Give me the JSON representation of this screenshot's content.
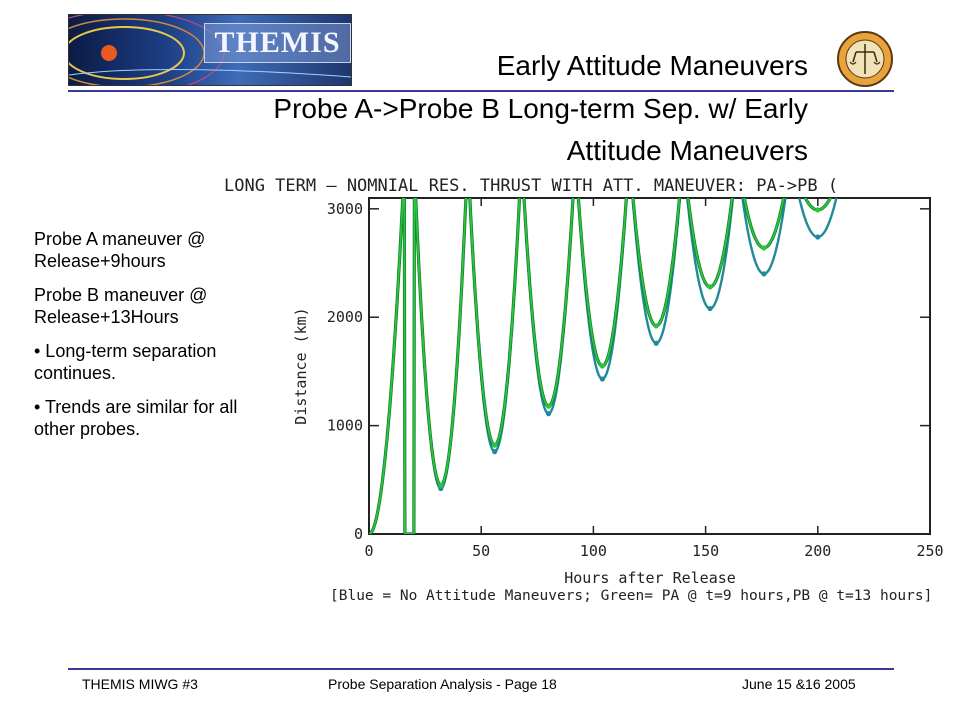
{
  "header": {
    "logo_text": "THEMIS",
    "seal_text": "THEMIS",
    "title_line1": "Early Attitude Maneuvers",
    "title_line2": "Probe A->Probe B Long-term Sep. w/ Early",
    "title_line3": "Attitude Maneuvers"
  },
  "notes": {
    "item1": "Probe A maneuver @ Release+9hours",
    "item2": "Probe B maneuver @ Release+13Hours",
    "item3": "• Long-term separation continues.",
    "item4": "• Trends are similar for all other probes."
  },
  "chart_data": {
    "type": "line",
    "title": "LONG TERM –  NOMNIAL RES. THRUST WITH ATT. MANEUVER: PA->PB (",
    "xlabel": "Hours after Release",
    "ylabel": "Distance (km)",
    "caption": "[Blue = No Attitude Maneuvers; Green= PA @ t=9 hours,PB @ t=13 hours]",
    "xlim": [
      0,
      250
    ],
    "ylim": [
      0,
      3100
    ],
    "xticks": [
      "0",
      "50",
      "100",
      "150",
      "200",
      "250"
    ],
    "yticks": [
      "0",
      "1000",
      "2000",
      "3000"
    ],
    "colors": {
      "blue": "#1f8a9a",
      "green": "#2cc43c",
      "green_dark": "#0c7a2a"
    },
    "series": [
      {
        "name": "Blue = No Attitude Maneuvers",
        "color": "#1f8a9a",
        "minima": [
          {
            "x": 32,
            "y": 420
          },
          {
            "x": 56,
            "y": 760
          },
          {
            "x": 80,
            "y": 1110
          },
          {
            "x": 104,
            "y": 1430
          },
          {
            "x": 128,
            "y": 1760
          },
          {
            "x": 152,
            "y": 2080
          },
          {
            "x": 176,
            "y": 2400
          },
          {
            "x": 200,
            "y": 2740
          }
        ]
      },
      {
        "name": "Green= PA @ t=9 hours,PB @ t=13 hours",
        "color": "#2cc43c",
        "minima": [
          {
            "x": 32,
            "y": 450
          },
          {
            "x": 56,
            "y": 820
          },
          {
            "x": 80,
            "y": 1180
          },
          {
            "x": 104,
            "y": 1550
          },
          {
            "x": 128,
            "y": 1920
          },
          {
            "x": 152,
            "y": 2280
          },
          {
            "x": 176,
            "y": 2640
          },
          {
            "x": 200,
            "y": 2990
          }
        ]
      }
    ]
  },
  "footer": {
    "left": "THEMIS MIWG #3",
    "center": "Probe Separation Analysis - Page 18",
    "right": "June 15 &16 2005"
  }
}
